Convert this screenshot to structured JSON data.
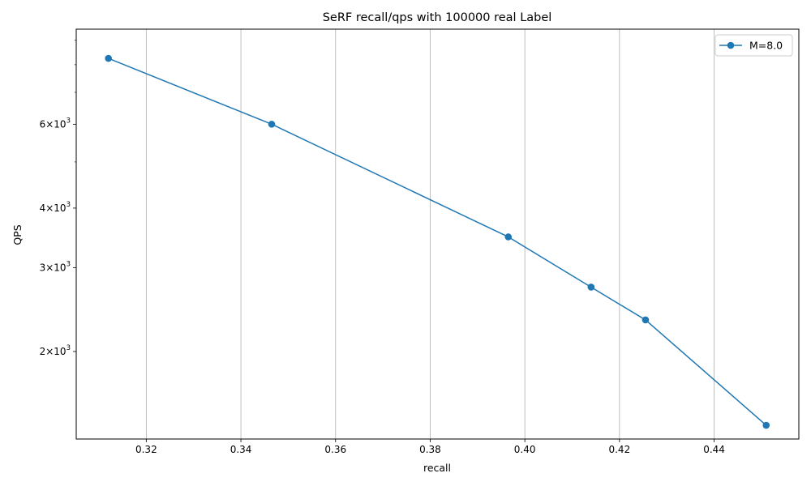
{
  "chart_data": {
    "type": "line",
    "title": "SeRF recall/qps with 100000 real Label",
    "xlabel": "recall",
    "ylabel": "QPS",
    "y_scale": "log",
    "xlim": [
      0.3052,
      0.4579
    ],
    "ylim": [
      1310,
      9500
    ],
    "x_ticks": [
      0.32,
      0.34,
      0.36,
      0.38,
      0.4,
      0.42,
      0.44
    ],
    "x_tick_labels": [
      "0.32",
      "0.34",
      "0.36",
      "0.38",
      "0.40",
      "0.42",
      "0.44"
    ],
    "y_major_ticks": [
      2000,
      3000,
      4000,
      6000
    ],
    "y_tick_labels": [
      {
        "value": 2000,
        "mantissa": "2",
        "base": "10",
        "exp": "3"
      },
      {
        "value": 3000,
        "mantissa": "3",
        "base": "10",
        "exp": "3"
      },
      {
        "value": 4000,
        "mantissa": "4",
        "base": "10",
        "exp": "3"
      },
      {
        "value": 6000,
        "mantissa": "6",
        "base": "10",
        "exp": "3"
      }
    ],
    "y_minor_ticks": [
      5000,
      7000,
      8000,
      9000
    ],
    "grid": "x-major",
    "legend_position": "top-right",
    "series": [
      {
        "name": "M=8.0",
        "color": "#1f77b4",
        "marker": "circle",
        "points": [
          {
            "x": 0.312,
            "y": 8250
          },
          {
            "x": 0.3465,
            "y": 6000
          },
          {
            "x": 0.3965,
            "y": 3480
          },
          {
            "x": 0.414,
            "y": 2730
          },
          {
            "x": 0.4255,
            "y": 2330
          },
          {
            "x": 0.451,
            "y": 1400
          }
        ]
      }
    ]
  }
}
